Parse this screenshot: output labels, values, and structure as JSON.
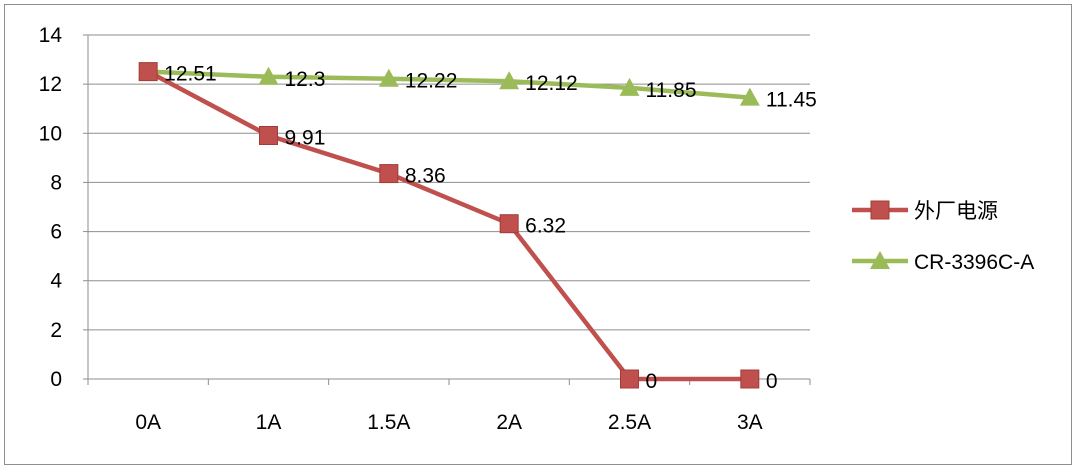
{
  "chart_data": {
    "type": "line",
    "title": "",
    "xlabel": "",
    "ylabel": "",
    "categories": [
      "0A",
      "1A",
      "1.5A",
      "2A",
      "2.5A",
      "3A"
    ],
    "ylim": [
      0,
      14
    ],
    "yticks": [
      0,
      2,
      4,
      6,
      8,
      10,
      12,
      14
    ],
    "grid": true,
    "legend_position": "right",
    "series": [
      {
        "name": "外厂电源",
        "marker": "square",
        "color": "#c0504d",
        "values": [
          12.51,
          9.91,
          8.36,
          6.32,
          0,
          0
        ],
        "labels": [
          "12.51",
          "9.91",
          "8.36",
          "6.32",
          "0",
          "0"
        ]
      },
      {
        "name": "CR-3396C-A",
        "marker": "triangle",
        "color": "#9bbb59",
        "values": [
          12.51,
          12.3,
          12.22,
          12.12,
          11.85,
          11.45
        ],
        "labels": [
          "",
          "12.3",
          "12.22",
          "12.12",
          "11.85",
          "11.45"
        ]
      }
    ]
  }
}
